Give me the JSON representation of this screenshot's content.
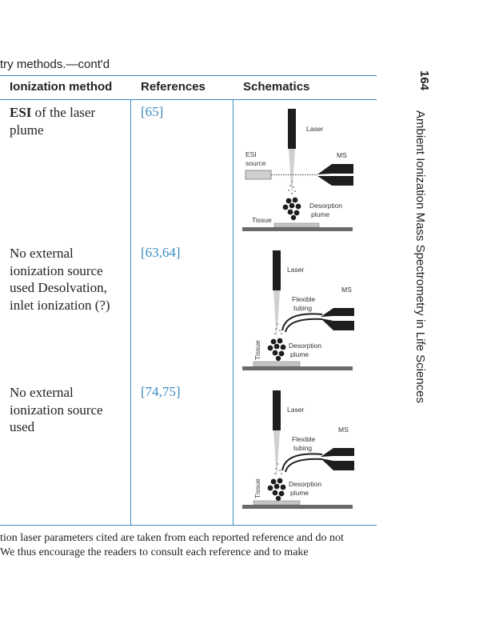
{
  "caption": "try methods.—cont'd",
  "page_number": "164",
  "running_head": "Ambient Ionization Mass Spectrometry in Life Sciences",
  "columns": {
    "method": "Ionization method",
    "references": "References",
    "schematics": "Schematics"
  },
  "rows": [
    {
      "method_bold": "ESI",
      "method_rest": " of the laser",
      "method_line2": "plume",
      "ref": "[65]",
      "schematic": {
        "laser": "Laser",
        "esi_line1": "ESI",
        "esi_line2": "source",
        "ms": "MS",
        "desorption_line1": "Desorption",
        "desorption_line2": "plume",
        "tissue": "Tissue"
      }
    },
    {
      "method_lines": [
        "No external",
        "ionization source",
        "used Desolvation,",
        "inlet ionization (?)"
      ],
      "ref": "[63,64]",
      "schematic": {
        "laser": "Laser",
        "ms": "MS",
        "tubing_line1": "Flexible",
        "tubing_line2": "tubing",
        "tissue": "Tissue",
        "desorption_line1": "Desorption",
        "desorption_line2": "plume"
      }
    },
    {
      "method_lines": [
        "No external",
        "ionization source",
        "used"
      ],
      "ref": "[74,75]",
      "schematic": {
        "laser": "Laser",
        "ms": "MS",
        "tubing_line1": "Flexible",
        "tubing_line2": "tubing",
        "tissue": "Tissue",
        "desorption_line1": "Desorption",
        "desorption_line2": "plume"
      }
    }
  ],
  "footnote": [
    "tion laser parameters cited are taken from each reported reference and do not",
    "We thus encourage the readers to consult each reference and to make"
  ]
}
